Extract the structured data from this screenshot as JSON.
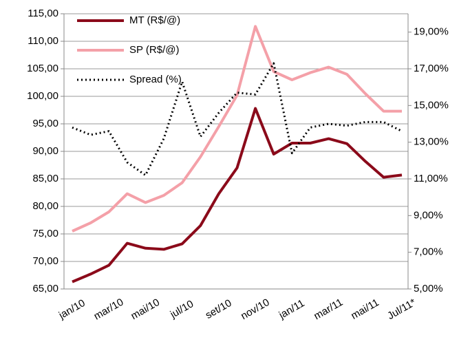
{
  "chart_data": {
    "type": "line",
    "categories": [
      "jan/10",
      null,
      "mar/10",
      null,
      "mai/10",
      null,
      "jul/10",
      null,
      "set/10",
      null,
      "nov/10",
      null,
      "jan/11",
      null,
      "mar/11",
      null,
      "mai/11",
      null,
      "Jul/11*"
    ],
    "series": [
      {
        "name": "MT (R$/@)",
        "color": "#8b0a1a",
        "values": [
          66.3,
          67.7,
          69.3,
          73.3,
          72.4,
          72.2,
          73.2,
          76.5,
          82.3,
          87.0,
          97.8,
          89.5,
          91.5,
          91.5,
          92.3,
          91.4,
          88.2,
          85.3,
          85.7
        ]
      },
      {
        "name": "SP (R$/@)",
        "color": "#f4a0a8",
        "values": [
          75.5,
          77.0,
          79.0,
          82.3,
          80.7,
          82.0,
          84.3,
          89.0,
          94.5,
          100.2,
          112.7,
          104.5,
          103.0,
          104.3,
          105.3,
          104.0,
          100.5,
          97.3,
          97.3
        ]
      },
      {
        "name": "Spread (%)",
        "color": "#000000",
        "axis": "y2",
        "dash": "2,4",
        "values": [
          13.8,
          13.4,
          13.6,
          11.9,
          11.2,
          13.2,
          16.3,
          13.3,
          14.6,
          15.7,
          15.6,
          17.3,
          12.4,
          13.8,
          14.0,
          13.9,
          14.1,
          14.1,
          13.6
        ]
      }
    ],
    "ylim": [
      65,
      115
    ],
    "yticks": [
      {
        "value": 65,
        "label": "65,00"
      },
      {
        "value": 70,
        "label": "70,00"
      },
      {
        "value": 75,
        "label": "75,00"
      },
      {
        "value": 80,
        "label": "80,00"
      },
      {
        "value": 85,
        "label": "85,00"
      },
      {
        "value": 90,
        "label": "90,00"
      },
      {
        "value": 95,
        "label": "95,00"
      },
      {
        "value": 100,
        "label": "100,00"
      },
      {
        "value": 105,
        "label": "105,00"
      },
      {
        "value": 110,
        "label": "110,00"
      },
      {
        "value": 115,
        "label": "115,00"
      }
    ],
    "y2lim": [
      5,
      20
    ],
    "y2ticks": [
      {
        "value": 5,
        "label": "5,00%"
      },
      {
        "value": 7,
        "label": "7,00%"
      },
      {
        "value": 9,
        "label": "9,00%"
      },
      {
        "value": 11,
        "label": "11,00%"
      },
      {
        "value": 13,
        "label": "13,00%"
      },
      {
        "value": 15,
        "label": "15,00%"
      },
      {
        "value": 17,
        "label": "17,00%"
      },
      {
        "value": 19,
        "label": "19,00%"
      }
    ],
    "grid": true,
    "legend": "top-left"
  }
}
